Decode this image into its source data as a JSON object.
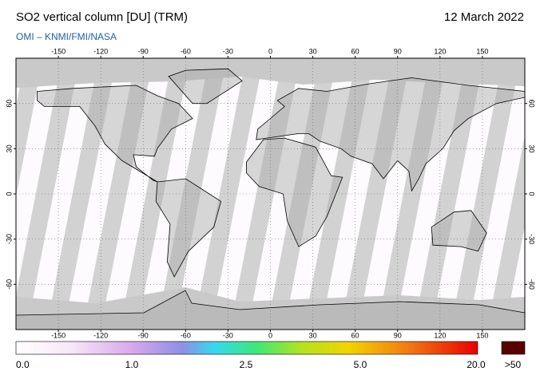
{
  "title": "SO2 vertical column [DU] (TRM)",
  "date": "12 March 2022",
  "source": "OMI – KNMI/FMI/NASA",
  "map": {
    "xlim": [
      -180,
      180
    ],
    "ylim": [
      -90,
      90
    ],
    "xticks": [
      -150,
      -120,
      -90,
      -60,
      -30,
      0,
      30,
      60,
      90,
      120,
      150
    ],
    "yticks": [
      60,
      30,
      0,
      -30,
      -60
    ]
  },
  "colorbar": {
    "labels": [
      "0.0",
      "1.0",
      "2.5",
      "5.0",
      "20.0",
      ">50"
    ]
  }
}
